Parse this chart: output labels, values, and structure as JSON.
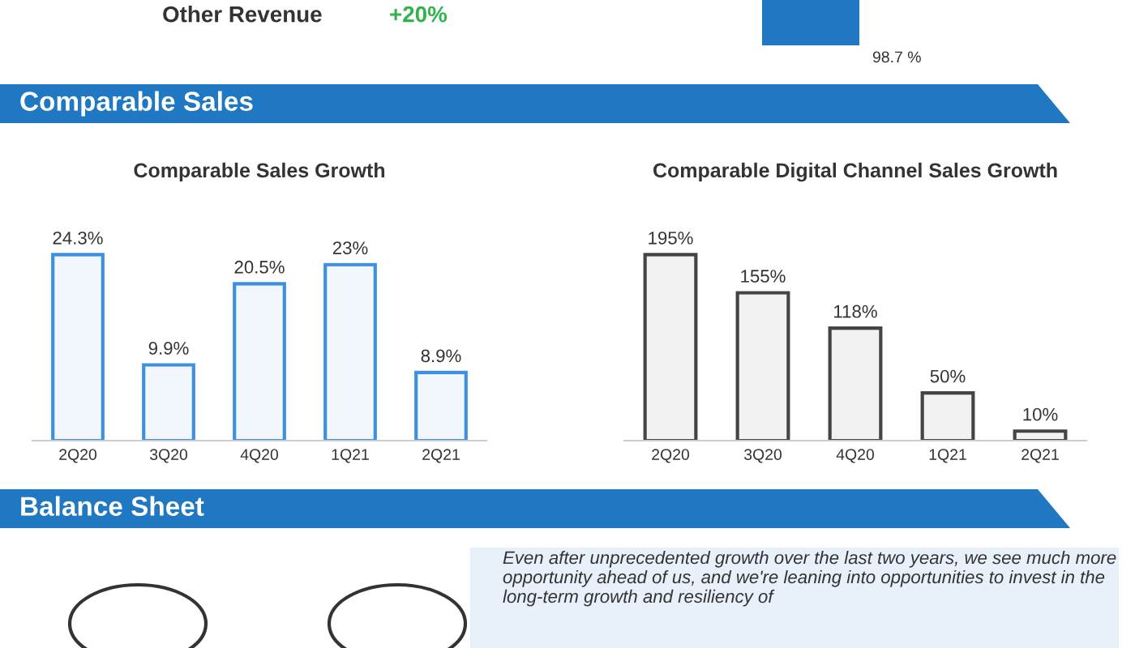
{
  "chart_data": [
    {
      "type": "other",
      "annotations": [
        "Other Revenue",
        "+20%",
        "98.7 %",
        "Comparable Sales",
        "Balance Sheet",
        "Even after unprecedented growth over the last two years, we see much more opportunity ahead of us, and we're leaning into opportunities to invest in the long-term growth and resiliency of"
      ]
    },
    {
      "type": "bar",
      "title": "Comparable Sales Growth",
      "categories": [
        "2Q20",
        "3Q20",
        "4Q20",
        "1Q21",
        "2Q21"
      ],
      "values": [
        24.3,
        9.9,
        20.5,
        23,
        8.9
      ],
      "value_labels": [
        "24.3%",
        "9.9%",
        "20.5%",
        "23%",
        "8.9%"
      ],
      "color": "#3d8fe0"
    },
    {
      "type": "bar",
      "title": "Comparable Digital Channel Sales Growth",
      "categories": [
        "2Q20",
        "3Q20",
        "4Q20",
        "1Q21",
        "2Q21"
      ],
      "values": [
        195,
        155,
        118,
        50,
        10
      ],
      "value_labels": [
        "195%",
        "155%",
        "118%",
        "50%",
        "10%"
      ],
      "color": "#444444"
    }
  ]
}
